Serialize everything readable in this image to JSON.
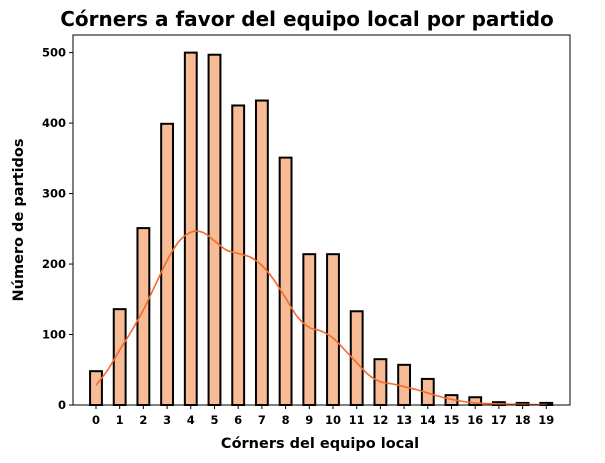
{
  "chart_data": {
    "type": "bar",
    "title": "Córners a favor del equipo local por partido",
    "xlabel": "Córners del equipo local",
    "ylabel": "Número de partidos",
    "categories": [
      "0",
      "1",
      "2",
      "3",
      "4",
      "5",
      "6",
      "7",
      "8",
      "9",
      "10",
      "11",
      "12",
      "13",
      "14",
      "15",
      "16",
      "17",
      "18",
      "19"
    ],
    "x": [
      0,
      1,
      2,
      3,
      4,
      5,
      6,
      7,
      8,
      9,
      10,
      11,
      12,
      13,
      14,
      15,
      16,
      17,
      18,
      19
    ],
    "values": [
      48,
      136,
      251,
      399,
      500,
      497,
      425,
      432,
      351,
      214,
      214,
      133,
      65,
      57,
      37,
      14,
      11,
      4,
      3,
      3
    ],
    "kde_curve": {
      "x": [
        0,
        0.5,
        1,
        1.5,
        2,
        2.5,
        3,
        3.5,
        4,
        4.5,
        5,
        5.5,
        6,
        6.5,
        7,
        7.5,
        8,
        8.5,
        9,
        9.5,
        10,
        10.5,
        11,
        11.5,
        12,
        12.5,
        13,
        13.5,
        14,
        14.5,
        15,
        15.5,
        16,
        16.5,
        17,
        17.5,
        18,
        18.5,
        19
      ],
      "y": [
        28,
        50,
        78,
        105,
        135,
        170,
        205,
        232,
        245,
        245,
        233,
        220,
        215,
        210,
        198,
        178,
        152,
        125,
        110,
        105,
        95,
        78,
        60,
        43,
        33,
        30,
        26,
        22,
        17,
        12,
        8,
        5,
        3,
        2,
        1.5,
        1,
        0.8,
        0.5,
        0.4
      ]
    },
    "ylim": [
      0,
      525
    ],
    "xlim": [
      -0.97,
      20.0
    ],
    "yticks": [
      0,
      100,
      200,
      300,
      400,
      500
    ],
    "grid": false,
    "colors": {
      "bar_fill": "#f7bb95",
      "bar_edge": "#000000",
      "kde_line": "#f26b2a"
    }
  }
}
